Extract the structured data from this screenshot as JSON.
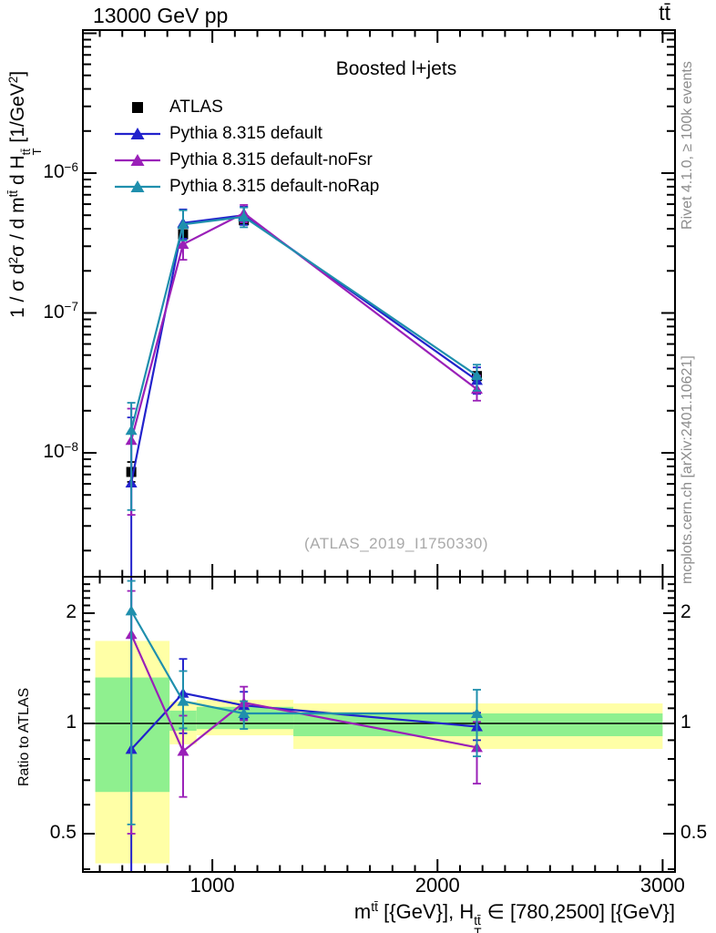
{
  "header": {
    "energy": "13000 GeV pp",
    "process": "tt̄"
  },
  "plot_title": "Boosted l+jets",
  "watermark": "(ATLAS_2019_I1750330)",
  "side_notes": {
    "rivet": "Rivet 4.1.0, ≥ 100k events",
    "mcplots": "mcplots.cern.ch [arXiv:2401.10621]"
  },
  "colors": {
    "atlas": "#000000",
    "default": "#2222cc",
    "noFsr": "#9a20b8",
    "noRap": "#1f8fad",
    "band_yellow": "#ffffa6",
    "band_green": "#8ff08f",
    "gray_text": "#8c8c8c"
  },
  "legend": [
    {
      "label": "ATLAS",
      "marker": "square",
      "line": false,
      "color": "#000000"
    },
    {
      "label": "Pythia 8.315 default",
      "marker": "triangle",
      "line": true,
      "color": "#2222cc"
    },
    {
      "label": "Pythia 8.315 default-noFsr",
      "marker": "triangle",
      "line": true,
      "color": "#9a20b8"
    },
    {
      "label": "Pythia 8.315 default-noRap",
      "marker": "triangle",
      "line": true,
      "color": "#1f8fad"
    }
  ],
  "axes": {
    "x": {
      "major": [
        {
          "label": "1000",
          "value": 1000
        },
        {
          "label": "2000",
          "value": 2000
        },
        {
          "label": "3000",
          "value": 3000
        }
      ],
      "title_segments": [
        {
          "t": "m"
        },
        {
          "t": "tt̄",
          "sup": true
        },
        {
          "t": " [{GeV}], H"
        },
        {
          "stack": {
            "top": "tt̄",
            "bottom": "T"
          }
        },
        {
          "t": " ∈ [780,2500] [{GeV}]"
        }
      ]
    },
    "y_main": {
      "labeled": [
        {
          "base": "10",
          "exp": "−6",
          "value": 1e-06
        },
        {
          "base": "10",
          "exp": "−7",
          "value": 1e-07
        },
        {
          "base": "10",
          "exp": "−8",
          "value": 1e-08
        }
      ],
      "title_segments": [
        {
          "t": "1 / σ d"
        },
        {
          "t": "2",
          "sup": true
        },
        {
          "t": "σ / d m"
        },
        {
          "t": "tt̄",
          "sup": true
        },
        {
          "t": " d H"
        },
        {
          "stack": {
            "top": "tt̄",
            "bottom": "T"
          }
        },
        {
          "t": " [1/GeV"
        },
        {
          "t": "2",
          "sup": true
        },
        {
          "t": "]"
        }
      ]
    },
    "y_ratio": {
      "label": "Ratio to ATLAS",
      "labeled": [
        {
          "label": "2",
          "value": 2
        },
        {
          "label": "1",
          "value": 1
        },
        {
          "label": "0.5",
          "value": 0.5
        }
      ]
    }
  },
  "chart_data": {
    "type": "line",
    "title": "Boosted l+jets",
    "xlabel": "m^tt [GeV], H_T^tt in [780,2500] [GeV]",
    "x_scale": "linear",
    "x_range": [
      425,
      3055
    ],
    "x": [
      640,
      870,
      1140,
      2175
    ],
    "bin_edges": [
      480,
      810,
      930,
      1360,
      3000
    ],
    "main_panel": {
      "ylabel": "1/sigma d2sigma/dm^tt dH_T^tt [1/GeV^2]",
      "y_scale": "log",
      "y_range": [
        1.3e-09,
        1.05e-05
      ],
      "series": [
        {
          "name": "ATLAS",
          "marker": "square",
          "line": false,
          "color": "#000000",
          "values": [
            7.3e-09,
            3.65e-07,
            4.6e-07,
            3.54e-08
          ],
          "err_lo": [
            6.2e-09,
            3.42e-07,
            4.38e-07,
            3.32e-08
          ],
          "err_hi": [
            8.6e-09,
            3.9e-07,
            4.83e-07,
            3.78e-08
          ]
        },
        {
          "name": "Pythia 8.315 default",
          "marker": "triangle",
          "line": true,
          "color": "#2222cc",
          "values": [
            6.1e-09,
            4.4e-07,
            5e-07,
            3.3e-08
          ],
          "err_lo": [
            1e-09,
            3.4e-07,
            4.26e-07,
            2.64e-08
          ],
          "err_hi": [
            1.79e-08,
            5.5e-07,
            5.75e-07,
            4.08e-08
          ]
        },
        {
          "name": "Pythia 8.315 default-noFsr",
          "marker": "triangle",
          "line": true,
          "color": "#9a20b8",
          "values": [
            1.23e-08,
            3.1e-07,
            5.17e-07,
            2.85e-08
          ],
          "err_lo": [
            3.6e-09,
            2.4e-07,
            4.45e-07,
            2.36e-08
          ],
          "err_hi": [
            2.07e-08,
            4.07e-07,
            5.92e-07,
            3.57e-08
          ]
        },
        {
          "name": "Pythia 8.315 default-noRap",
          "marker": "triangle",
          "line": true,
          "color": "#1f8fad",
          "values": [
            1.45e-08,
            4.3e-07,
            4.87e-07,
            3.57e-08
          ],
          "err_lo": [
            3.9e-09,
            3.3e-07,
            4.1e-07,
            2.78e-08
          ],
          "err_hi": [
            2.28e-08,
            5.42e-07,
            5.68e-07,
            4.27e-08
          ]
        }
      ]
    },
    "ratio_panel": {
      "ylabel": "Ratio to ATLAS",
      "y_scale": "log",
      "y_range": [
        0.39,
        2.51
      ],
      "reference_line": 1,
      "bands": [
        {
          "bin": [
            480,
            810
          ],
          "yellow": [
            0.415,
            1.68
          ],
          "green": [
            0.65,
            1.335
          ]
        },
        {
          "bin": [
            810,
            930
          ],
          "yellow": [
            0.877,
            1.147
          ],
          "green": [
            0.955,
            1.084
          ]
        },
        {
          "bin": [
            930,
            1360
          ],
          "yellow": [
            0.928,
            1.16
          ],
          "green": [
            0.965,
            1.11
          ]
        },
        {
          "bin": [
            1360,
            3000
          ],
          "yellow": [
            0.852,
            1.134
          ],
          "green": [
            0.923,
            1.065
          ]
        }
      ],
      "series": [
        {
          "name": "Pythia 8.315 default",
          "marker": "triangle",
          "line": true,
          "color": "#2222cc",
          "values": [
            0.85,
            1.21,
            1.12,
            0.98
          ],
          "err_lo": [
            0.3,
            0.94,
            1.03,
            0.9
          ],
          "err_hi": [
            2.6,
            1.5,
            1.22,
            1.07
          ]
        },
        {
          "name": "Pythia 8.315 default-noFsr",
          "marker": "triangle",
          "line": true,
          "color": "#9a20b8",
          "values": [
            1.75,
            0.84,
            1.14,
            0.86
          ],
          "err_lo": [
            0.5,
            0.63,
            1.02,
            0.685
          ],
          "err_hi": [
            2.3,
            1.05,
            1.26,
            1.01
          ]
        },
        {
          "name": "Pythia 8.315 default-noRap",
          "marker": "triangle",
          "line": true,
          "color": "#1f8fad",
          "values": [
            2.03,
            1.15,
            1.065,
            1.065
          ],
          "err_lo": [
            0.53,
            0.97,
            0.966,
            0.813
          ],
          "err_hi": [
            2.45,
            1.39,
            1.15,
            1.236
          ]
        }
      ]
    }
  }
}
